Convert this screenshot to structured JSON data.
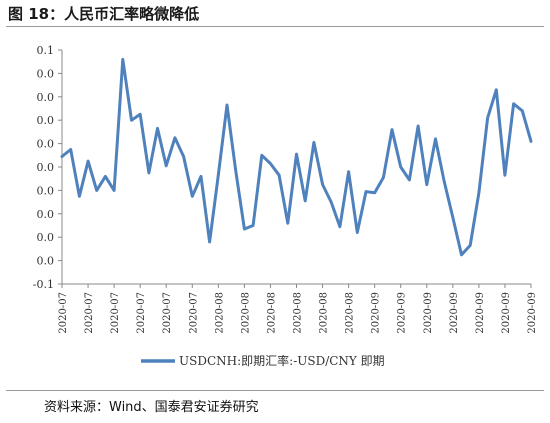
{
  "header": {
    "title": "图 18：人民币汇率略微降低"
  },
  "footer": {
    "source": "资料来源：Wind、国泰君安证券研究"
  },
  "colors": {
    "line": "#4f81bd"
  },
  "chart_data": {
    "type": "line",
    "title": "",
    "xlabel": "",
    "ylabel": "",
    "ylim": [
      -0.1,
      0.1
    ],
    "yticks": [
      -0.1,
      -0.08,
      -0.06,
      -0.04,
      -0.02,
      0.0,
      0.02,
      0.04,
      0.06,
      0.08,
      0.1
    ],
    "ytick_labels": [
      "-0.1",
      "0.0",
      "0.0",
      "0.0",
      "0.0",
      "0.0",
      "0.0",
      "0.0",
      "0.0",
      "0.0",
      "0.1"
    ],
    "xtick_labels": [
      "2020-07",
      "2020-07",
      "2020-07",
      "2020-07",
      "2020-07",
      "2020-07",
      "2020-08",
      "2020-08",
      "2020-08",
      "2020-08",
      "2020-08",
      "2020-08",
      "2020-09",
      "2020-09",
      "2020-09",
      "2020-09",
      "2020-09",
      "2020-09",
      "2020-09"
    ],
    "legend": "bottom",
    "series": [
      {
        "name": "USDCNH:即期汇率:-USD/CNY 即期",
        "values": [
          0.009,
          0.015,
          -0.025,
          0.005,
          -0.02,
          -0.008,
          -0.02,
          0.092,
          0.04,
          0.045,
          -0.005,
          0.033,
          0.001,
          0.025,
          0.009,
          -0.025,
          -0.008,
          -0.064,
          -0.007,
          0.053,
          -0.003,
          -0.053,
          -0.05,
          0.01,
          0.003,
          -0.007,
          -0.048,
          0.011,
          -0.029,
          0.021,
          -0.015,
          -0.03,
          -0.051,
          -0.004,
          -0.056,
          -0.021,
          -0.022,
          -0.009,
          0.032,
          0.0,
          -0.011,
          0.035,
          -0.015,
          0.024,
          -0.012,
          -0.043,
          -0.075,
          -0.067,
          -0.022,
          0.042,
          0.066,
          -0.007,
          0.054,
          0.048,
          0.022
        ]
      }
    ]
  }
}
